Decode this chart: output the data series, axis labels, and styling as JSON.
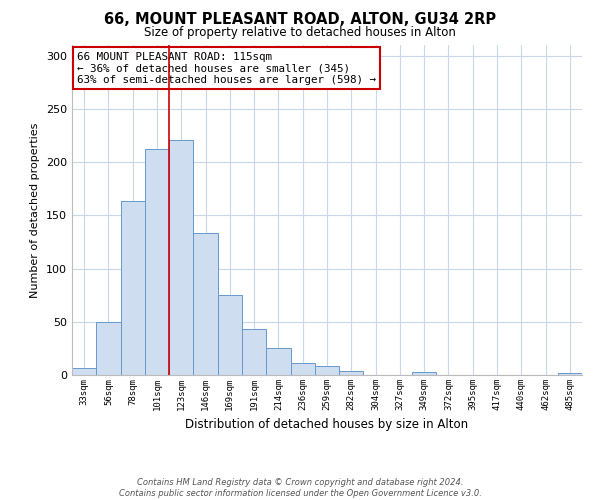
{
  "title": "66, MOUNT PLEASANT ROAD, ALTON, GU34 2RP",
  "subtitle": "Size of property relative to detached houses in Alton",
  "xlabel": "Distribution of detached houses by size in Alton",
  "ylabel": "Number of detached properties",
  "bin_labels": [
    "33sqm",
    "56sqm",
    "78sqm",
    "101sqm",
    "123sqm",
    "146sqm",
    "169sqm",
    "191sqm",
    "214sqm",
    "236sqm",
    "259sqm",
    "282sqm",
    "304sqm",
    "327sqm",
    "349sqm",
    "372sqm",
    "395sqm",
    "417sqm",
    "440sqm",
    "462sqm",
    "485sqm"
  ],
  "bar_heights": [
    7,
    50,
    163,
    212,
    221,
    133,
    75,
    43,
    25,
    11,
    8,
    4,
    0,
    0,
    3,
    0,
    0,
    0,
    0,
    0,
    2
  ],
  "bar_color": "#cfddf0",
  "bar_edge_color": "#6699cc",
  "vline_x": 3.5,
  "vline_color": "#cc0000",
  "annotation_text": "66 MOUNT PLEASANT ROAD: 115sqm\n← 36% of detached houses are smaller (345)\n63% of semi-detached houses are larger (598) →",
  "annotation_box_color": "#ffffff",
  "annotation_box_edge": "#cc0000",
  "ylim": [
    0,
    310
  ],
  "yticks": [
    0,
    50,
    100,
    150,
    200,
    250,
    300
  ],
  "footer": "Contains HM Land Registry data © Crown copyright and database right 2024.\nContains public sector information licensed under the Open Government Licence v3.0.",
  "bg_color": "#ffffff",
  "grid_color": "#c8d8e8"
}
